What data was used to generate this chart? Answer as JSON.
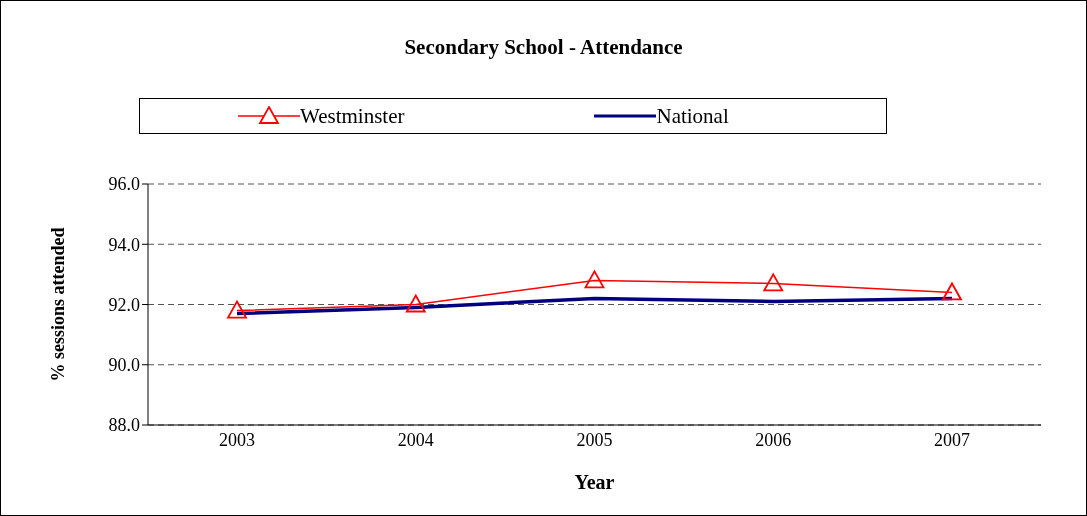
{
  "chart_data": {
    "type": "line",
    "title": "Secondary School - Attendance",
    "xlabel": "Year",
    "ylabel": "% sessions attended",
    "categories": [
      "2003",
      "2004",
      "2005",
      "2006",
      "2007"
    ],
    "series": [
      {
        "name": "Westminster",
        "color": "#ff0000",
        "values": [
          91.8,
          92.0,
          92.8,
          92.7,
          92.4
        ],
        "marker": "triangle"
      },
      {
        "name": "National",
        "color": "#000080",
        "values": [
          91.7,
          91.9,
          92.2,
          92.1,
          92.2
        ],
        "marker": "none"
      }
    ],
    "ylim": [
      88,
      96
    ],
    "yticks": [
      {
        "value": 88,
        "label": "88.0"
      },
      {
        "value": 90,
        "label": "90.0"
      },
      {
        "value": 92,
        "label": "92.0"
      },
      {
        "value": 94,
        "label": "94.0"
      },
      {
        "value": 96,
        "label": "96.0"
      }
    ],
    "grid": "y",
    "legend": "top"
  }
}
